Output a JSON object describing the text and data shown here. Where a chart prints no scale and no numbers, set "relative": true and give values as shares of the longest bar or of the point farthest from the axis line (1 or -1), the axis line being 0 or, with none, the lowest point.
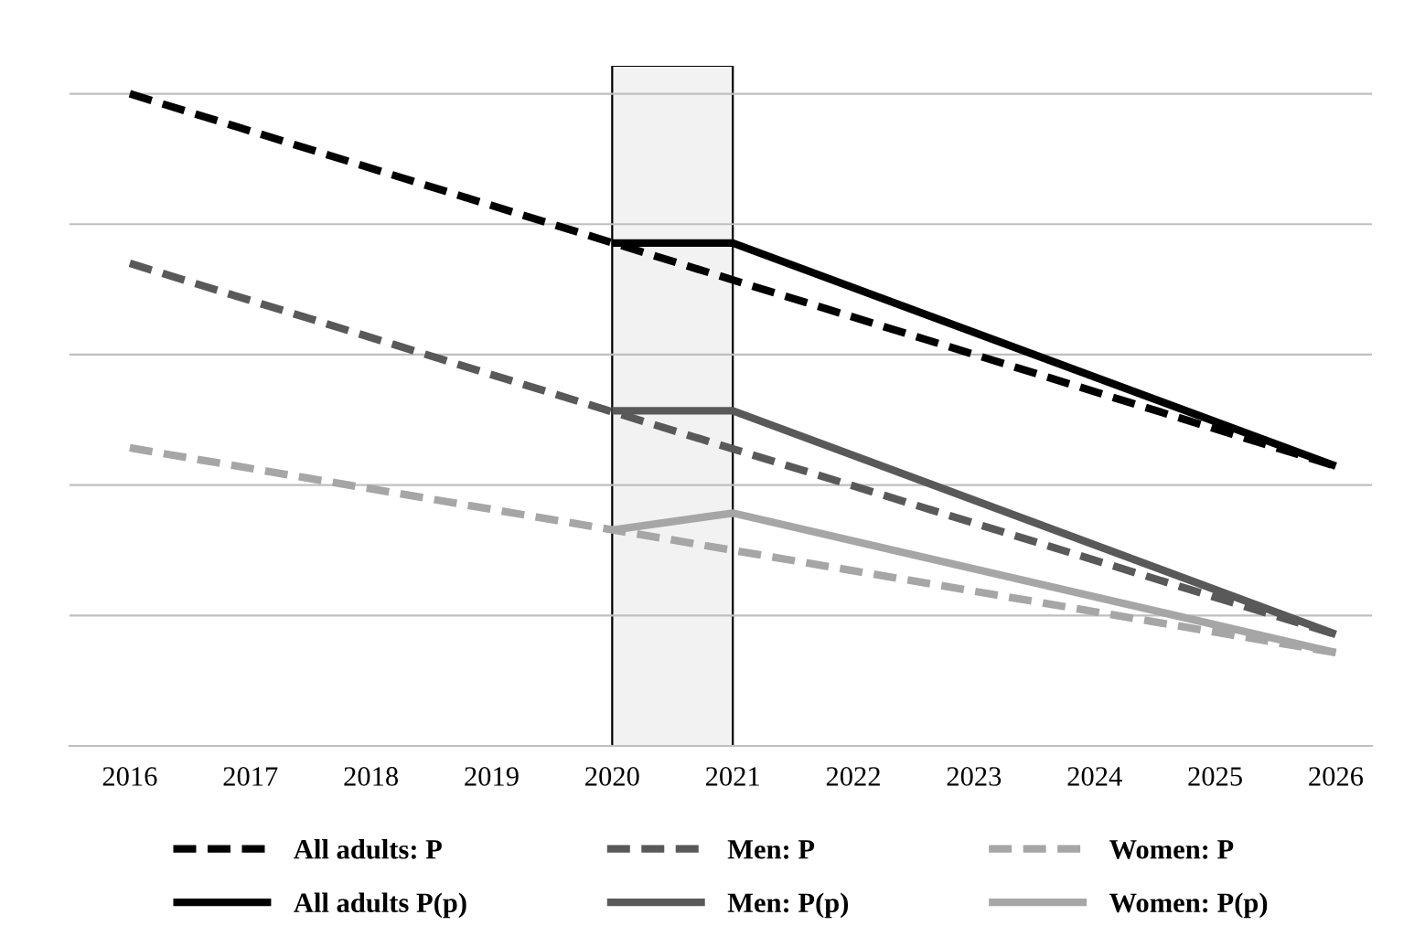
{
  "chart_data": {
    "type": "line",
    "relative": true,
    "xlim": [
      2015.5,
      2026.3
    ],
    "xticks": [
      2016,
      2017,
      2018,
      2019,
      2020,
      2021,
      2022,
      2023,
      2024,
      2025,
      2026
    ],
    "grid": "y",
    "legend": "bottom",
    "line_style": "dashed",
    "marker": "none",
    "bands": [
      {
        "axis": "x",
        "from": 2020,
        "to": 2021,
        "color": "#f2f2f2"
      }
    ],
    "series": [
      {
        "name": "All adults: P",
        "color": "#000000",
        "x": [
          2016,
          2026
        ],
        "values": [
          1,
          0.429
        ]
      },
      {
        "name": "Men: P",
        "color": "#595959",
        "x": [
          2016,
          2026
        ],
        "values": [
          0.74,
          0.171
        ]
      },
      {
        "name": "Women: P",
        "color": "#a6a6a6",
        "x": [
          2016,
          2026
        ],
        "values": [
          0.457,
          0.143
        ]
      },
      {
        "name": "All adults P(p)",
        "color": "#000000",
        "line_style": "solid",
        "x": [
          2020,
          2021,
          2026
        ],
        "values": [
          0.771,
          0.771,
          0.429
        ]
      },
      {
        "name": "Men: P(p)",
        "color": "#595959",
        "line_style": "solid",
        "x": [
          2020,
          2021,
          2026
        ],
        "values": [
          0.514,
          0.514,
          0.171
        ]
      },
      {
        "name": "Women: P(p)",
        "color": "#a6a6a6",
        "line_style": "solid",
        "x": [
          2020,
          2021,
          2026
        ],
        "values": [
          0.331,
          0.357,
          0.143
        ]
      }
    ]
  }
}
